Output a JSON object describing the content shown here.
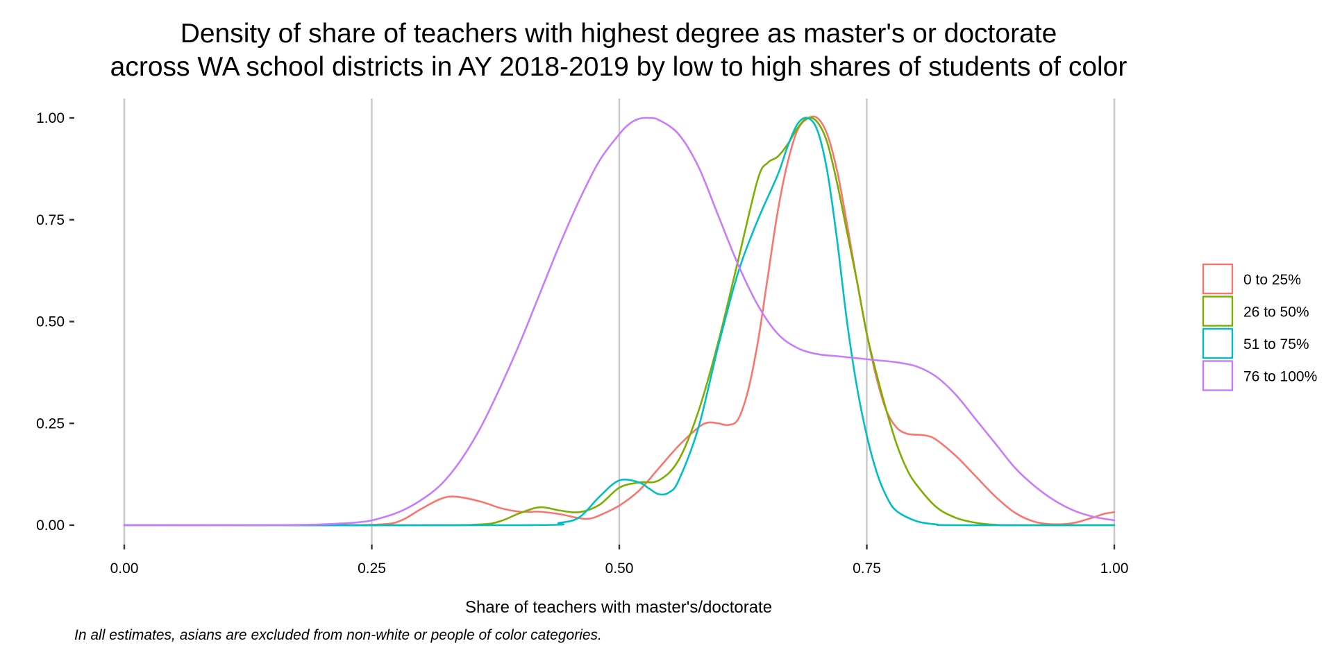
{
  "chart_data": {
    "type": "line",
    "title_lines": [
      "Density of share of teachers with highest degree as master's or doctorate",
      "across WA school districts in AY 2018-2019 by low to high shares of students of color"
    ],
    "xlabel": "Share of teachers with master's/doctorate",
    "ylabel": "",
    "caption": "In all estimates, asians are excluded from non-white or people of color categories.",
    "xlim": [
      0,
      1
    ],
    "ylim": [
      0,
      1
    ],
    "x_ticks": [
      0,
      0.25,
      0.5,
      0.75,
      1
    ],
    "x_tick_labels": [
      "0.00",
      "0.25",
      "0.50",
      "0.75",
      "1.00"
    ],
    "y_ticks": [
      0,
      0.25,
      0.5,
      0.75,
      1
    ],
    "y_tick_labels": [
      "0.00",
      "0.25",
      "0.50",
      "0.75",
      "1.00"
    ],
    "grid": "vertical major lines only",
    "legend_position": "right",
    "series": [
      {
        "name": "0 to 25%",
        "color": "#F8766D",
        "points": [
          [
            0,
            0
          ],
          [
            0.2,
            0
          ],
          [
            0.26,
            0.002
          ],
          [
            0.28,
            0.012
          ],
          [
            0.3,
            0.04
          ],
          [
            0.32,
            0.065
          ],
          [
            0.335,
            0.07
          ],
          [
            0.36,
            0.058
          ],
          [
            0.38,
            0.042
          ],
          [
            0.4,
            0.033
          ],
          [
            0.42,
            0.033
          ],
          [
            0.44,
            0.027
          ],
          [
            0.46,
            0.017
          ],
          [
            0.47,
            0.016
          ],
          [
            0.48,
            0.024
          ],
          [
            0.5,
            0.048
          ],
          [
            0.52,
            0.085
          ],
          [
            0.54,
            0.14
          ],
          [
            0.56,
            0.195
          ],
          [
            0.58,
            0.24
          ],
          [
            0.59,
            0.252
          ],
          [
            0.6,
            0.25
          ],
          [
            0.61,
            0.246
          ],
          [
            0.62,
            0.26
          ],
          [
            0.63,
            0.33
          ],
          [
            0.64,
            0.45
          ],
          [
            0.65,
            0.61
          ],
          [
            0.66,
            0.77
          ],
          [
            0.67,
            0.89
          ],
          [
            0.68,
            0.97
          ],
          [
            0.69,
            0.998
          ],
          [
            0.7,
            1.0
          ],
          [
            0.71,
            0.96
          ],
          [
            0.72,
            0.87
          ],
          [
            0.73,
            0.74
          ],
          [
            0.74,
            0.6
          ],
          [
            0.75,
            0.47
          ],
          [
            0.76,
            0.36
          ],
          [
            0.77,
            0.28
          ],
          [
            0.78,
            0.24
          ],
          [
            0.79,
            0.225
          ],
          [
            0.8,
            0.222
          ],
          [
            0.81,
            0.22
          ],
          [
            0.82,
            0.21
          ],
          [
            0.84,
            0.17
          ],
          [
            0.86,
            0.12
          ],
          [
            0.88,
            0.07
          ],
          [
            0.9,
            0.03
          ],
          [
            0.92,
            0.008
          ],
          [
            0.94,
            0.002
          ],
          [
            0.96,
            0.006
          ],
          [
            0.98,
            0.02
          ],
          [
            0.99,
            0.028
          ],
          [
            1.0,
            0.032
          ]
        ]
      },
      {
        "name": "26 to 50%",
        "color": "#7CAE00",
        "points": [
          [
            0,
            0
          ],
          [
            0.3,
            0
          ],
          [
            0.36,
            0.002
          ],
          [
            0.38,
            0.01
          ],
          [
            0.4,
            0.03
          ],
          [
            0.42,
            0.044
          ],
          [
            0.44,
            0.036
          ],
          [
            0.46,
            0.032
          ],
          [
            0.48,
            0.05
          ],
          [
            0.5,
            0.092
          ],
          [
            0.52,
            0.105
          ],
          [
            0.54,
            0.11
          ],
          [
            0.56,
            0.16
          ],
          [
            0.58,
            0.28
          ],
          [
            0.6,
            0.45
          ],
          [
            0.62,
            0.65
          ],
          [
            0.64,
            0.85
          ],
          [
            0.65,
            0.89
          ],
          [
            0.66,
            0.905
          ],
          [
            0.67,
            0.935
          ],
          [
            0.68,
            0.975
          ],
          [
            0.69,
            1.0
          ],
          [
            0.7,
            0.99
          ],
          [
            0.71,
            0.94
          ],
          [
            0.72,
            0.84
          ],
          [
            0.73,
            0.72
          ],
          [
            0.74,
            0.6
          ],
          [
            0.75,
            0.47
          ],
          [
            0.76,
            0.37
          ],
          [
            0.77,
            0.28
          ],
          [
            0.78,
            0.2
          ],
          [
            0.79,
            0.14
          ],
          [
            0.8,
            0.1
          ],
          [
            0.82,
            0.045
          ],
          [
            0.84,
            0.018
          ],
          [
            0.86,
            0.006
          ],
          [
            0.88,
            0.001
          ],
          [
            0.9,
            0
          ],
          [
            1.0,
            0
          ]
        ]
      },
      {
        "name": "51 to 75%",
        "color": "#00BFC4",
        "points": [
          [
            0,
            0
          ],
          [
            0.4,
            0
          ],
          [
            0.44,
            0.006
          ],
          [
            0.46,
            0.02
          ],
          [
            0.48,
            0.07
          ],
          [
            0.5,
            0.11
          ],
          [
            0.52,
            0.105
          ],
          [
            0.53,
            0.09
          ],
          [
            0.54,
            0.076
          ],
          [
            0.55,
            0.08
          ],
          [
            0.56,
            0.11
          ],
          [
            0.58,
            0.24
          ],
          [
            0.6,
            0.44
          ],
          [
            0.62,
            0.62
          ],
          [
            0.64,
            0.75
          ],
          [
            0.66,
            0.86
          ],
          [
            0.67,
            0.93
          ],
          [
            0.68,
            0.985
          ],
          [
            0.69,
            1.0
          ],
          [
            0.7,
            0.97
          ],
          [
            0.71,
            0.87
          ],
          [
            0.72,
            0.7
          ],
          [
            0.73,
            0.5
          ],
          [
            0.74,
            0.34
          ],
          [
            0.75,
            0.22
          ],
          [
            0.76,
            0.13
          ],
          [
            0.77,
            0.07
          ],
          [
            0.78,
            0.035
          ],
          [
            0.8,
            0.01
          ],
          [
            0.82,
            0.002
          ],
          [
            0.84,
            0
          ],
          [
            1.0,
            0
          ]
        ]
      },
      {
        "name": "76 to 100%",
        "color": "#C77CFF",
        "points": [
          [
            0,
            0
          ],
          [
            0.15,
            0
          ],
          [
            0.2,
            0.002
          ],
          [
            0.24,
            0.008
          ],
          [
            0.26,
            0.018
          ],
          [
            0.28,
            0.035
          ],
          [
            0.3,
            0.062
          ],
          [
            0.32,
            0.1
          ],
          [
            0.34,
            0.16
          ],
          [
            0.36,
            0.24
          ],
          [
            0.38,
            0.34
          ],
          [
            0.4,
            0.45
          ],
          [
            0.42,
            0.57
          ],
          [
            0.44,
            0.69
          ],
          [
            0.46,
            0.8
          ],
          [
            0.48,
            0.895
          ],
          [
            0.5,
            0.96
          ],
          [
            0.51,
            0.985
          ],
          [
            0.52,
            0.998
          ],
          [
            0.53,
            1.0
          ],
          [
            0.54,
            0.995
          ],
          [
            0.56,
            0.96
          ],
          [
            0.58,
            0.88
          ],
          [
            0.6,
            0.76
          ],
          [
            0.62,
            0.64
          ],
          [
            0.64,
            0.54
          ],
          [
            0.66,
            0.47
          ],
          [
            0.68,
            0.435
          ],
          [
            0.7,
            0.42
          ],
          [
            0.72,
            0.415
          ],
          [
            0.74,
            0.41
          ],
          [
            0.76,
            0.405
          ],
          [
            0.78,
            0.4
          ],
          [
            0.8,
            0.39
          ],
          [
            0.82,
            0.365
          ],
          [
            0.84,
            0.32
          ],
          [
            0.86,
            0.26
          ],
          [
            0.88,
            0.2
          ],
          [
            0.9,
            0.14
          ],
          [
            0.92,
            0.095
          ],
          [
            0.94,
            0.06
          ],
          [
            0.96,
            0.035
          ],
          [
            0.98,
            0.02
          ],
          [
            1.0,
            0.012
          ]
        ]
      }
    ]
  }
}
